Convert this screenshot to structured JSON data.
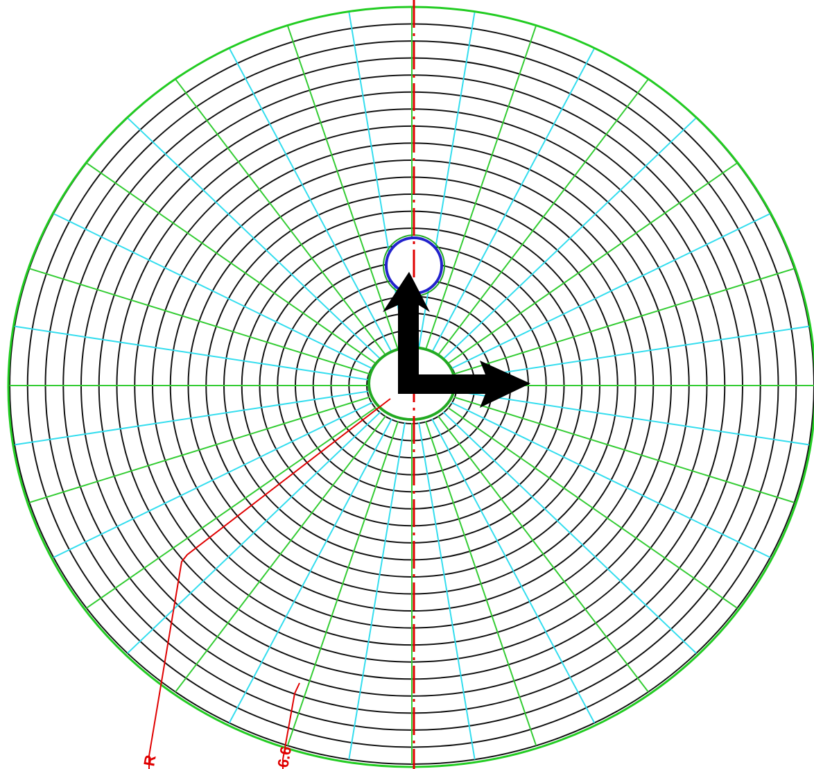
{
  "annotations": {
    "radius_label": "R",
    "dimension_label": "6.6"
  }
}
